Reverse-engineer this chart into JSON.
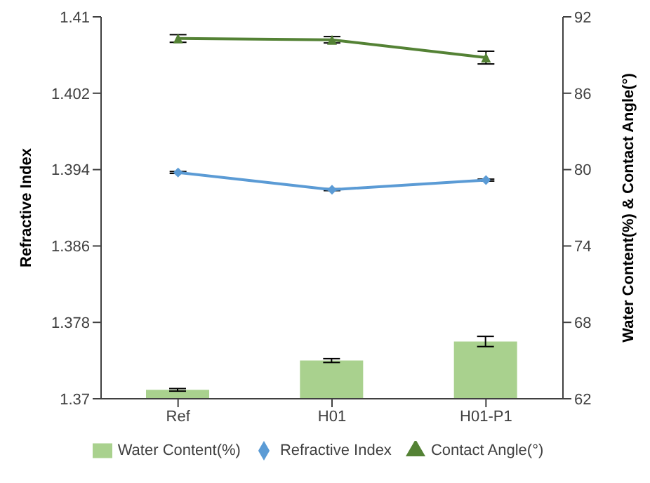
{
  "chart_data": {
    "type": "bar",
    "categories": [
      "Ref",
      "H01",
      "H01-P1"
    ],
    "ylabel": "Refractive Index",
    "y2label": "Water Content(%) & Contact Angle(°)",
    "ylim": [
      1.37,
      1.41
    ],
    "yticks": [
      1.37,
      1.378,
      1.386,
      1.394,
      1.402,
      1.41
    ],
    "y2lim": [
      62,
      92
    ],
    "y2ticks": [
      62,
      68,
      74,
      80,
      86,
      92
    ],
    "series": [
      {
        "name": "Water Content(%)",
        "axis": "y2",
        "color": "#a9d18e",
        "values": [
          62.7,
          65.0,
          66.5
        ],
        "errors": [
          0.1,
          0.15,
          0.4
        ]
      },
      {
        "name": "Refractive Index",
        "type": "line",
        "color": "#5b9bd5",
        "marker": "diamond",
        "values": [
          1.3937,
          1.3919,
          1.3929
        ],
        "errors": [
          0.0001,
          0.0001,
          0.0001
        ]
      },
      {
        "name": "Contact Angle(°)",
        "type": "line",
        "axis": "y2",
        "color": "#548235",
        "marker": "triangle",
        "values": [
          90.3,
          90.2,
          88.8
        ],
        "errors": [
          0.3,
          0.25,
          0.5
        ]
      }
    ],
    "legend": "bottom",
    "grid": false,
    "line_style": "solid"
  }
}
